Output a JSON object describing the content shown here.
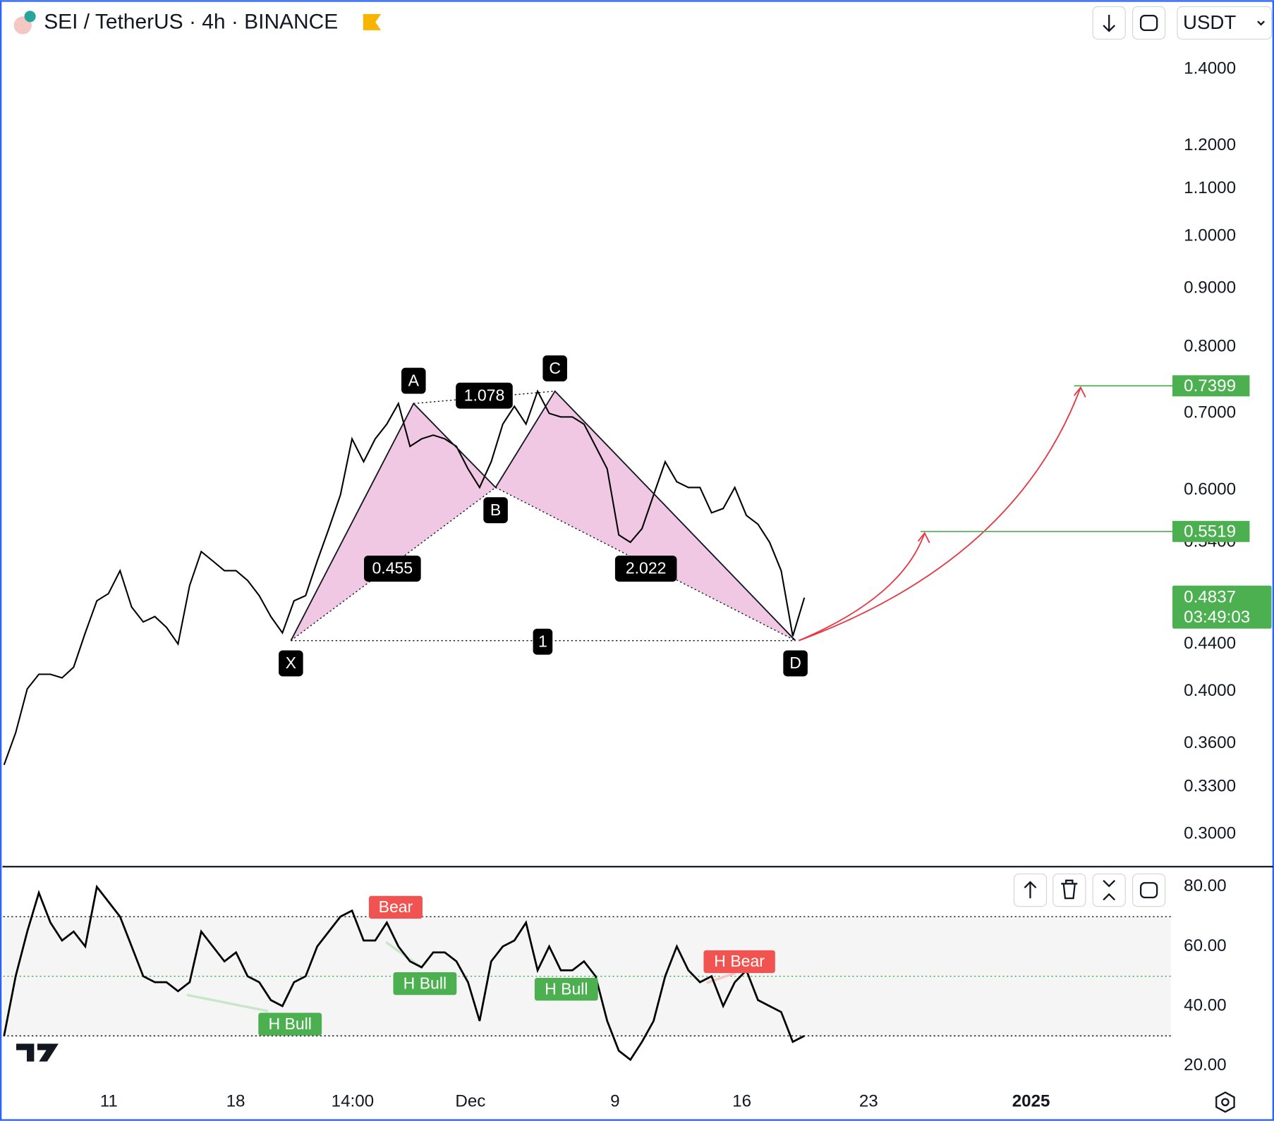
{
  "header": {
    "title": "SEI / TetherUS · 4h · BINANCE",
    "currency": "USDT"
  },
  "chart_data": [
    {
      "type": "line",
      "log_scale": true,
      "color": "#000000",
      "ylim": [
        0.282,
        1.595
      ],
      "yticks": [
        {
          "value": 1.4,
          "label": "1.4000"
        },
        {
          "value": 1.2,
          "label": "1.2000"
        },
        {
          "value": 1.1,
          "label": "1.1000"
        },
        {
          "value": 1.0,
          "label": "1.0000"
        },
        {
          "value": 0.9,
          "label": "0.9000"
        },
        {
          "value": 0.8,
          "label": "0.8000"
        },
        {
          "value": 0.7,
          "label": "0.7000"
        },
        {
          "value": 0.6,
          "label": "0.6000"
        },
        {
          "value": 0.54,
          "label": "0.5400"
        },
        {
          "value": 0.44,
          "label": "0.4400"
        },
        {
          "value": 0.4,
          "label": "0.4000"
        },
        {
          "value": 0.36,
          "label": "0.3600"
        },
        {
          "value": 0.33,
          "label": "0.3300"
        },
        {
          "value": 0.3,
          "label": "0.3000"
        }
      ],
      "values": [
        0.345,
        0.368,
        0.402,
        0.414,
        0.414,
        0.411,
        0.42,
        0.45,
        0.48,
        0.487,
        0.51,
        0.474,
        0.46,
        0.465,
        0.455,
        0.44,
        0.495,
        0.53,
        0.52,
        0.51,
        0.51,
        0.5,
        0.485,
        0.465,
        0.45,
        0.48,
        0.485,
        0.52,
        0.555,
        0.594,
        0.665,
        0.635,
        0.665,
        0.685,
        0.714,
        0.655,
        0.665,
        0.67,
        0.665,
        0.655,
        0.626,
        0.603,
        0.635,
        0.685,
        0.71,
        0.685,
        0.732,
        0.7,
        0.695,
        0.695,
        0.685,
        0.655,
        0.626,
        0.548,
        0.54,
        0.555,
        0.594,
        0.635,
        0.61,
        0.603,
        0.603,
        0.573,
        0.578,
        0.603,
        0.57,
        0.56,
        0.54,
        0.51,
        0.447,
        0.483
      ],
      "pattern": {
        "points": [
          {
            "label": "X",
            "value": 0.443
          },
          {
            "label": "A",
            "value": 0.714
          },
          {
            "label": "B",
            "value": 0.603
          },
          {
            "label": "C",
            "value": 0.732
          },
          {
            "label": "D",
            "value": 0.443
          }
        ],
        "ratios": [
          0.455,
          1.078,
          2.022,
          1
        ]
      },
      "targets": [
        0.7399,
        0.5519
      ],
      "current": {
        "value": 0.4837,
        "countdown": "03:49:03"
      }
    },
    {
      "type": "line",
      "color": "#000000",
      "ylim": [
        12.4,
        86.5
      ],
      "yticks": [
        {
          "value": 80,
          "label": "80.00"
        },
        {
          "value": 60,
          "label": "60.00"
        },
        {
          "value": 40,
          "label": "40.00"
        },
        {
          "value": 20,
          "label": "20.00"
        }
      ],
      "levels": [
        70,
        50,
        30
      ],
      "values": [
        30,
        50,
        65,
        78,
        68,
        62,
        65,
        60,
        80,
        75,
        70,
        60,
        50,
        48,
        48,
        45,
        48,
        65,
        60,
        55,
        58,
        50,
        48,
        42,
        40,
        48,
        50,
        60,
        65,
        70,
        72,
        62,
        62,
        68,
        60,
        55,
        53,
        58,
        58,
        55,
        48,
        35,
        55,
        60,
        62,
        68,
        52,
        60,
        52,
        52,
        55,
        50,
        35,
        25,
        22,
        28,
        35,
        50,
        60,
        52,
        48,
        50,
        40,
        48,
        52,
        42,
        40,
        38,
        28,
        30
      ],
      "signals": [
        "Bear",
        "H Bull",
        "H Bull",
        "H Bull",
        "H Bear"
      ]
    }
  ],
  "x_axis": {
    "labels": [
      "11",
      "18",
      "14:00",
      "Dec",
      "9",
      "16",
      "23",
      "2025"
    ]
  }
}
